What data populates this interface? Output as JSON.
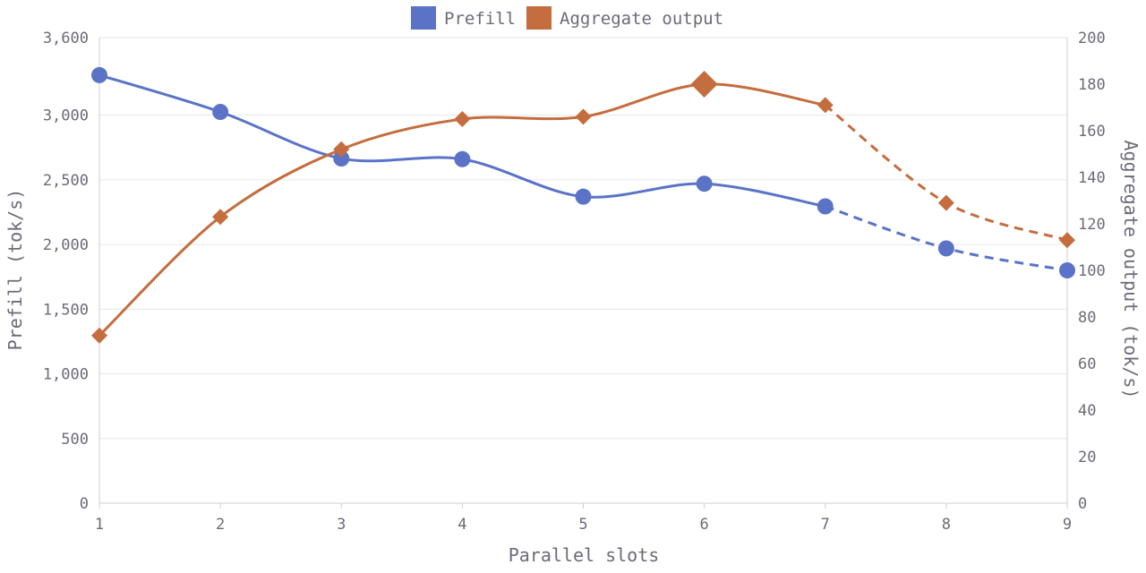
{
  "chart_data": {
    "type": "line",
    "x": [
      1,
      2,
      3,
      4,
      5,
      6,
      7,
      8,
      9
    ],
    "xlabel": "Parallel slots",
    "y_left": {
      "label": "Prefill (tok/s)",
      "range": [
        0,
        3600
      ],
      "ticks": [
        0,
        500,
        1000,
        1500,
        2000,
        2500,
        3000,
        3600
      ],
      "tick_labels": [
        "0",
        "500",
        "1,000",
        "1,500",
        "2,000",
        "2,500",
        "3,000",
        "3,600"
      ]
    },
    "y_right": {
      "label": "Aggregate output (tok/s)",
      "range": [
        0,
        200
      ],
      "ticks": [
        0,
        20,
        40,
        60,
        80,
        100,
        120,
        140,
        160,
        180,
        200
      ],
      "tick_labels": [
        "0",
        "20",
        "40",
        "60",
        "80",
        "100",
        "120",
        "140",
        "160",
        "180",
        "200"
      ]
    },
    "x_tick_labels": [
      "1",
      "2",
      "3",
      "4",
      "5",
      "6",
      "7",
      "8",
      "9"
    ],
    "legend_position": "top-center",
    "grid": true,
    "series": [
      {
        "name": "Prefill",
        "axis": "left",
        "color": "#5b73c7",
        "marker": "circle",
        "values": [
          3310,
          3025,
          2665,
          2660,
          2370,
          2470,
          2295,
          1970,
          1800
        ],
        "solid_until_x": 7
      },
      {
        "name": "Aggregate output",
        "axis": "right",
        "color": "#c46d3e",
        "marker": "diamond",
        "values": [
          72,
          123,
          152,
          165,
          166,
          180,
          171,
          129,
          113
        ],
        "solid_until_x": 7,
        "highlight_x": 6
      }
    ]
  }
}
